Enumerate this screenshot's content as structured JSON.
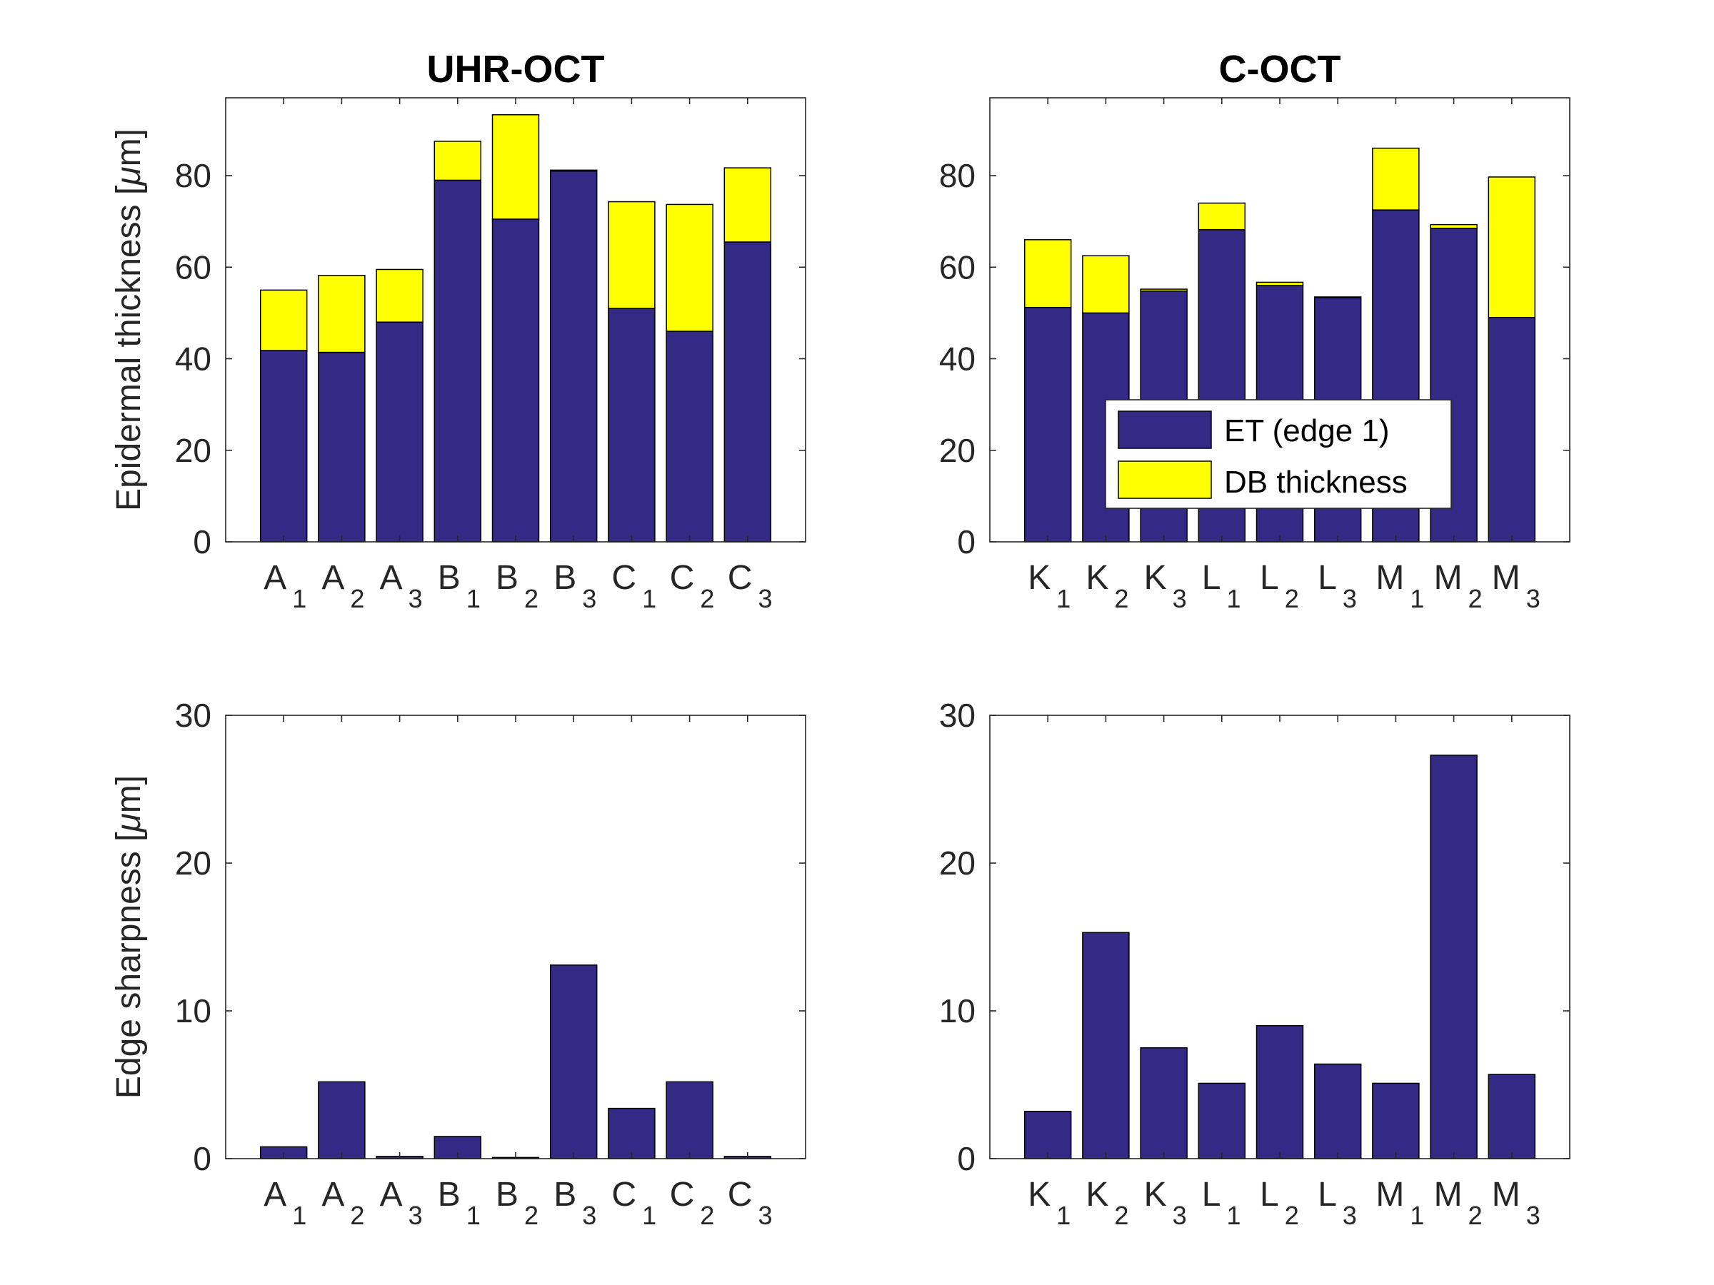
{
  "figure": {
    "colors": {
      "et": "#342a86",
      "db": "#ffff00",
      "axis": "#262626"
    }
  },
  "legend": {
    "items": [
      {
        "label": "ET (edge 1)",
        "color": "#342a86"
      },
      {
        "label": "DB thickness",
        "color": "#ffff00"
      }
    ]
  },
  "chart_data": [
    {
      "type": "bar",
      "stacked": true,
      "title": "UHR-OCT",
      "ylabel": "Epidermal thickness [μm]",
      "ylabel_parts": [
        "Epidermal thickness [",
        "μ",
        "m]"
      ],
      "ylim": [
        0,
        97
      ],
      "yticks": [
        0,
        20,
        40,
        60,
        80
      ],
      "categories": [
        [
          "A",
          "1"
        ],
        [
          "A",
          "2"
        ],
        [
          "A",
          "3"
        ],
        [
          "B",
          "1"
        ],
        [
          "B",
          "2"
        ],
        [
          "B",
          "3"
        ],
        [
          "C",
          "1"
        ],
        [
          "C",
          "2"
        ],
        [
          "C",
          "3"
        ]
      ],
      "series": [
        {
          "name": "ET (edge 1)",
          "values": [
            41.8,
            41.4,
            48.0,
            79.0,
            70.5,
            81.0,
            51.0,
            46.0,
            65.5
          ]
        },
        {
          "name": "DB thickness",
          "values": [
            13.2,
            16.8,
            11.5,
            8.5,
            22.8,
            0.2,
            23.3,
            27.7,
            16.2
          ]
        }
      ]
    },
    {
      "type": "bar",
      "stacked": true,
      "title": "C-OCT",
      "ylabel": "",
      "ylim": [
        0,
        97
      ],
      "yticks": [
        0,
        20,
        40,
        60,
        80
      ],
      "categories": [
        [
          "K",
          "1"
        ],
        [
          "K",
          "2"
        ],
        [
          "K",
          "3"
        ],
        [
          "L",
          "1"
        ],
        [
          "L",
          "2"
        ],
        [
          "L",
          "3"
        ],
        [
          "M",
          "1"
        ],
        [
          "M",
          "2"
        ],
        [
          "M",
          "3"
        ]
      ],
      "series": [
        {
          "name": "ET (edge 1)",
          "values": [
            51.2,
            50.0,
            54.8,
            68.2,
            56.0,
            53.3,
            72.5,
            68.5,
            49.0
          ]
        },
        {
          "name": "DB thickness",
          "values": [
            14.8,
            12.5,
            0.4,
            5.8,
            0.7,
            0.2,
            13.5,
            0.8,
            30.7
          ]
        }
      ]
    },
    {
      "type": "bar",
      "title": "",
      "ylabel": "Edge sharpness [μm]",
      "ylabel_parts": [
        "Edge sharpness [",
        "μ",
        "m]"
      ],
      "ylim": [
        0,
        30
      ],
      "yticks": [
        0,
        10,
        20,
        30
      ],
      "categories": [
        [
          "A",
          "1"
        ],
        [
          "A",
          "2"
        ],
        [
          "A",
          "3"
        ],
        [
          "B",
          "1"
        ],
        [
          "B",
          "2"
        ],
        [
          "B",
          "3"
        ],
        [
          "C",
          "1"
        ],
        [
          "C",
          "2"
        ],
        [
          "C",
          "3"
        ]
      ],
      "series": [
        {
          "name": "Edge sharpness",
          "values": [
            0.8,
            5.2,
            0.15,
            1.5,
            0.08,
            13.1,
            3.4,
            5.2,
            0.15
          ]
        }
      ]
    },
    {
      "type": "bar",
      "title": "",
      "ylabel": "",
      "ylim": [
        0,
        30
      ],
      "yticks": [
        0,
        10,
        20,
        30
      ],
      "categories": [
        [
          "K",
          "1"
        ],
        [
          "K",
          "2"
        ],
        [
          "K",
          "3"
        ],
        [
          "L",
          "1"
        ],
        [
          "L",
          "2"
        ],
        [
          "L",
          "3"
        ],
        [
          "M",
          "1"
        ],
        [
          "M",
          "2"
        ],
        [
          "M",
          "3"
        ]
      ],
      "series": [
        {
          "name": "Edge sharpness",
          "values": [
            3.2,
            15.3,
            7.5,
            5.1,
            9.0,
            6.4,
            5.1,
            27.3,
            5.7
          ]
        }
      ]
    }
  ]
}
